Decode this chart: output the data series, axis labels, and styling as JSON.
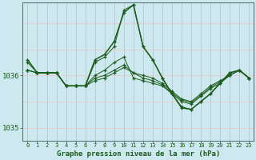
{
  "background_color": "#cde8ef",
  "plot_bg_color": "#cde8ef",
  "grid_color_v": "#b0c8cc",
  "grid_color_h": "#e8c8c8",
  "line_color": "#1a5c1a",
  "title": "Graphe pression niveau de la mer (hPa)",
  "ylim": [
    1034.75,
    1037.4
  ],
  "xlim": [
    -0.5,
    23.5
  ],
  "yticks": [
    1035,
    1036
  ],
  "xticks": [
    0,
    1,
    2,
    3,
    4,
    5,
    6,
    7,
    8,
    9,
    10,
    11,
    12,
    13,
    14,
    15,
    16,
    17,
    18,
    19,
    20,
    21,
    22,
    23
  ],
  "series": [
    [
      1036.25,
      1036.05,
      1036.05,
      1036.05,
      1035.8,
      1035.8,
      1035.8,
      1036.25,
      1036.35,
      1036.55,
      1037.25,
      1037.35,
      1036.55,
      1036.3,
      1035.95,
      1035.65,
      1035.4,
      1035.35,
      1035.5,
      1035.65,
      1035.85,
      1036.05,
      1036.1,
      1035.95
    ],
    [
      1036.1,
      1036.05,
      1036.05,
      1036.05,
      1035.8,
      1035.8,
      1035.8,
      1036.0,
      1036.1,
      1036.25,
      1036.35,
      1035.95,
      1035.9,
      1035.85,
      1035.8,
      1035.65,
      1035.5,
      1035.45,
      1035.6,
      1035.75,
      1035.85,
      1036.0,
      1036.1,
      1035.95
    ],
    [
      1036.1,
      1036.05,
      1036.05,
      1036.05,
      1035.8,
      1035.8,
      1035.8,
      1035.95,
      1036.0,
      1036.1,
      1036.2,
      1036.05,
      1036.0,
      1035.95,
      1035.85,
      1035.7,
      1035.55,
      1035.5,
      1035.65,
      1035.8,
      1035.9,
      1036.0,
      1036.1,
      1035.95
    ],
    [
      1036.1,
      1036.05,
      1036.05,
      1036.05,
      1035.8,
      1035.8,
      1035.8,
      1035.9,
      1035.95,
      1036.05,
      1036.15,
      1036.05,
      1035.95,
      1035.9,
      1035.82,
      1035.67,
      1035.53,
      1035.48,
      1035.62,
      1035.77,
      1035.88,
      1036.0,
      1036.1,
      1035.95
    ]
  ],
  "main_x": [
    0,
    1,
    2,
    3,
    4,
    5,
    6,
    7,
    8,
    9,
    10,
    11,
    12,
    13,
    14,
    15,
    16,
    17,
    18,
    19,
    20,
    21,
    22,
    23
  ],
  "main_y": [
    1036.3,
    1036.05,
    1036.05,
    1036.05,
    1035.8,
    1035.8,
    1035.8,
    1036.3,
    1036.4,
    1036.65,
    1037.2,
    1037.35,
    1036.55,
    1036.3,
    1035.95,
    1035.65,
    1035.38,
    1035.35,
    1035.5,
    1035.65,
    1035.85,
    1036.05,
    1036.1,
    1035.95
  ],
  "figsize": [
    3.2,
    2.0
  ],
  "dpi": 100
}
